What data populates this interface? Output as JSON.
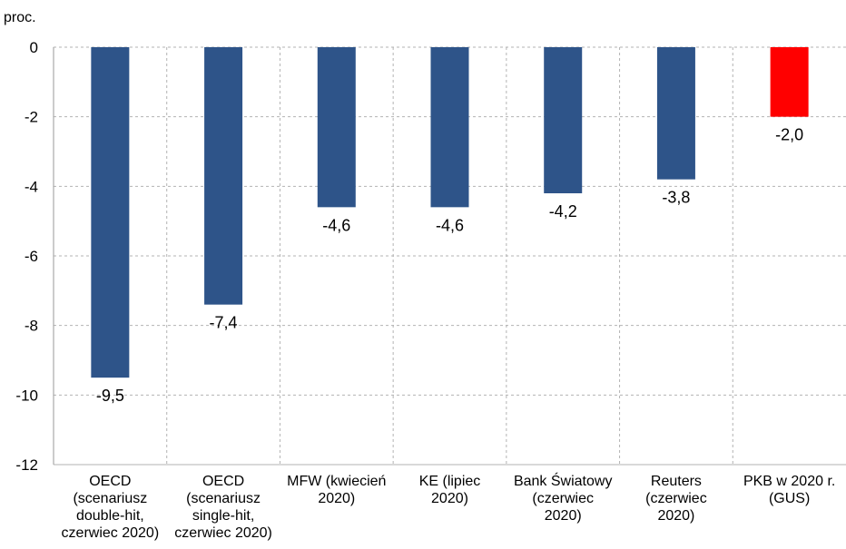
{
  "chart_data": {
    "type": "bar",
    "ylabel": "proc.",
    "ylim": [
      -12,
      0
    ],
    "yticks": [
      0,
      -2,
      -4,
      -6,
      -8,
      -10,
      -12
    ],
    "grid": true,
    "categories": [
      [
        "OECD",
        "(scenariusz",
        "double-hit,",
        "czerwiec 2020)"
      ],
      [
        "OECD",
        "(scenariusz",
        "single-hit,",
        "czerwiec 2020)"
      ],
      [
        "MFW (kwiecień",
        "2020)"
      ],
      [
        "KE (lipiec",
        "2020)"
      ],
      [
        "Bank Światowy",
        "(czerwiec",
        "2020)"
      ],
      [
        "Reuters",
        "(czerwiec",
        "2020)"
      ],
      [
        "PKB w 2020 r.",
        "(GUS)"
      ]
    ],
    "values": [
      -9.5,
      -7.4,
      -4.6,
      -4.6,
      -4.2,
      -3.8,
      -2.0
    ],
    "value_labels": [
      "-9,5",
      "-7,4",
      "-4,6",
      "-4,6",
      "-4,2",
      "-3,8",
      "-2,0"
    ],
    "colors": [
      "#2e5489",
      "#2e5489",
      "#2e5489",
      "#2e5489",
      "#2e5489",
      "#2e5489",
      "#ff0000"
    ]
  }
}
